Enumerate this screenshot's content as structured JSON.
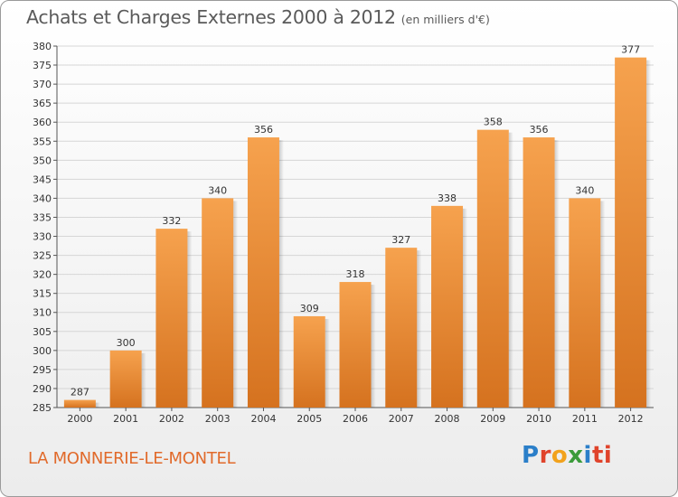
{
  "header": {
    "title": "Achats et Charges Externes 2000 à 2012",
    "subtitle": "(en milliers d'€)"
  },
  "footer": {
    "city": "LA MONNERIE-LE-MONTEL",
    "logo": [
      "P",
      "r",
      "o",
      "x",
      "i",
      "ti"
    ]
  },
  "colors": {
    "bar_light": "#f6a24e",
    "bar_dark": "#d5721f",
    "grid": "#d6d6d6",
    "title": "#5a5a5a",
    "city": "#e16a2b"
  },
  "chart_data": {
    "type": "bar",
    "title": "Achats et Charges Externes 2000 à 2012",
    "subtitle": "(en milliers d'€)",
    "categories": [
      "2000",
      "2001",
      "2002",
      "2003",
      "2004",
      "2005",
      "2006",
      "2007",
      "2008",
      "2009",
      "2010",
      "2011",
      "2012"
    ],
    "values": [
      287,
      300,
      332,
      340,
      356,
      309,
      318,
      327,
      338,
      358,
      356,
      340,
      377
    ],
    "ylim": [
      285,
      380
    ],
    "ytick_step": 5,
    "grid": true,
    "legend": "none"
  }
}
